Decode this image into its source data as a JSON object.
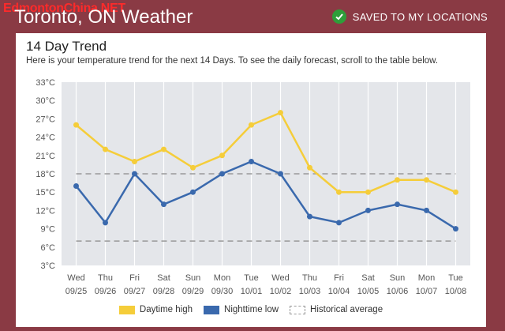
{
  "watermark": "EdmontonChina.NET",
  "header": {
    "title": "Toronto, ON Weather",
    "saved_label": "SAVED TO MY LOCATIONS"
  },
  "card": {
    "title": "14 Day Trend",
    "subtitle": "Here is your temperature trend for the next 14 Days. To see the daily forecast, scroll to the table below."
  },
  "colors": {
    "high": "#f5cd3a",
    "low": "#3a69ad",
    "plot_bg": "#e4e6ea",
    "grid": "#ffffff",
    "historical": "#999999"
  },
  "chart_data": {
    "type": "line",
    "days": [
      "Wed",
      "Thu",
      "Fri",
      "Sat",
      "Sun",
      "Mon",
      "Tue",
      "Wed",
      "Thu",
      "Fri",
      "Sat",
      "Sun",
      "Mon",
      "Tue"
    ],
    "dates": [
      "09/25",
      "09/26",
      "09/27",
      "09/28",
      "09/29",
      "09/30",
      "10/01",
      "10/02",
      "10/03",
      "10/04",
      "10/05",
      "10/06",
      "10/07",
      "10/08"
    ],
    "series": [
      {
        "name": "Daytime high",
        "values": [
          26,
          22,
          20,
          22,
          19,
          21,
          26,
          28,
          19,
          15,
          15,
          17,
          17,
          15
        ]
      },
      {
        "name": "Nighttime low",
        "values": [
          16,
          10,
          18,
          13,
          15,
          18,
          20,
          18,
          11,
          10,
          12,
          13,
          12,
          9
        ]
      }
    ],
    "historical_average": {
      "name": "Historical average",
      "high": 18,
      "low": 7
    },
    "ylim": [
      3,
      33
    ],
    "yticks": [
      "33°C",
      "30°C",
      "27°C",
      "24°C",
      "21°C",
      "18°C",
      "15°C",
      "12°C",
      "9°C",
      "6°C",
      "3°C"
    ],
    "legend": [
      "Daytime high",
      "Nighttime low",
      "Historical average"
    ]
  }
}
